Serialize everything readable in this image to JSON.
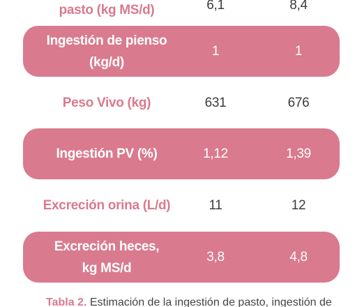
{
  "rows": [
    {
      "label": "pasto (kg MS/d)",
      "v1": "6,1",
      "v2": "8,4",
      "style": "white"
    },
    {
      "label": "Ingestión de pienso (kg/d)",
      "v1": "1",
      "v2": "1",
      "style": "pink"
    },
    {
      "label": "Peso Vivo (kg)",
      "v1": "631",
      "v2": "676",
      "style": "white"
    },
    {
      "label": "Ingestión PV (%)",
      "v1": "1,12",
      "v2": "1,39",
      "style": "pink"
    },
    {
      "label": "Excreción orina (L/d)",
      "v1": "11",
      "v2": "12",
      "style": "white"
    },
    {
      "label": "Excreción heces, kg MS/d",
      "v1": "3,8",
      "v2": "4,8",
      "style": "pink"
    }
  ],
  "caption": {
    "bold": "Tabla 2.",
    "text": "Estimación de la ingestión de pasto, ingestión de"
  },
  "colors": {
    "accent": "#d97a8e",
    "text": "#3c3c3c"
  }
}
